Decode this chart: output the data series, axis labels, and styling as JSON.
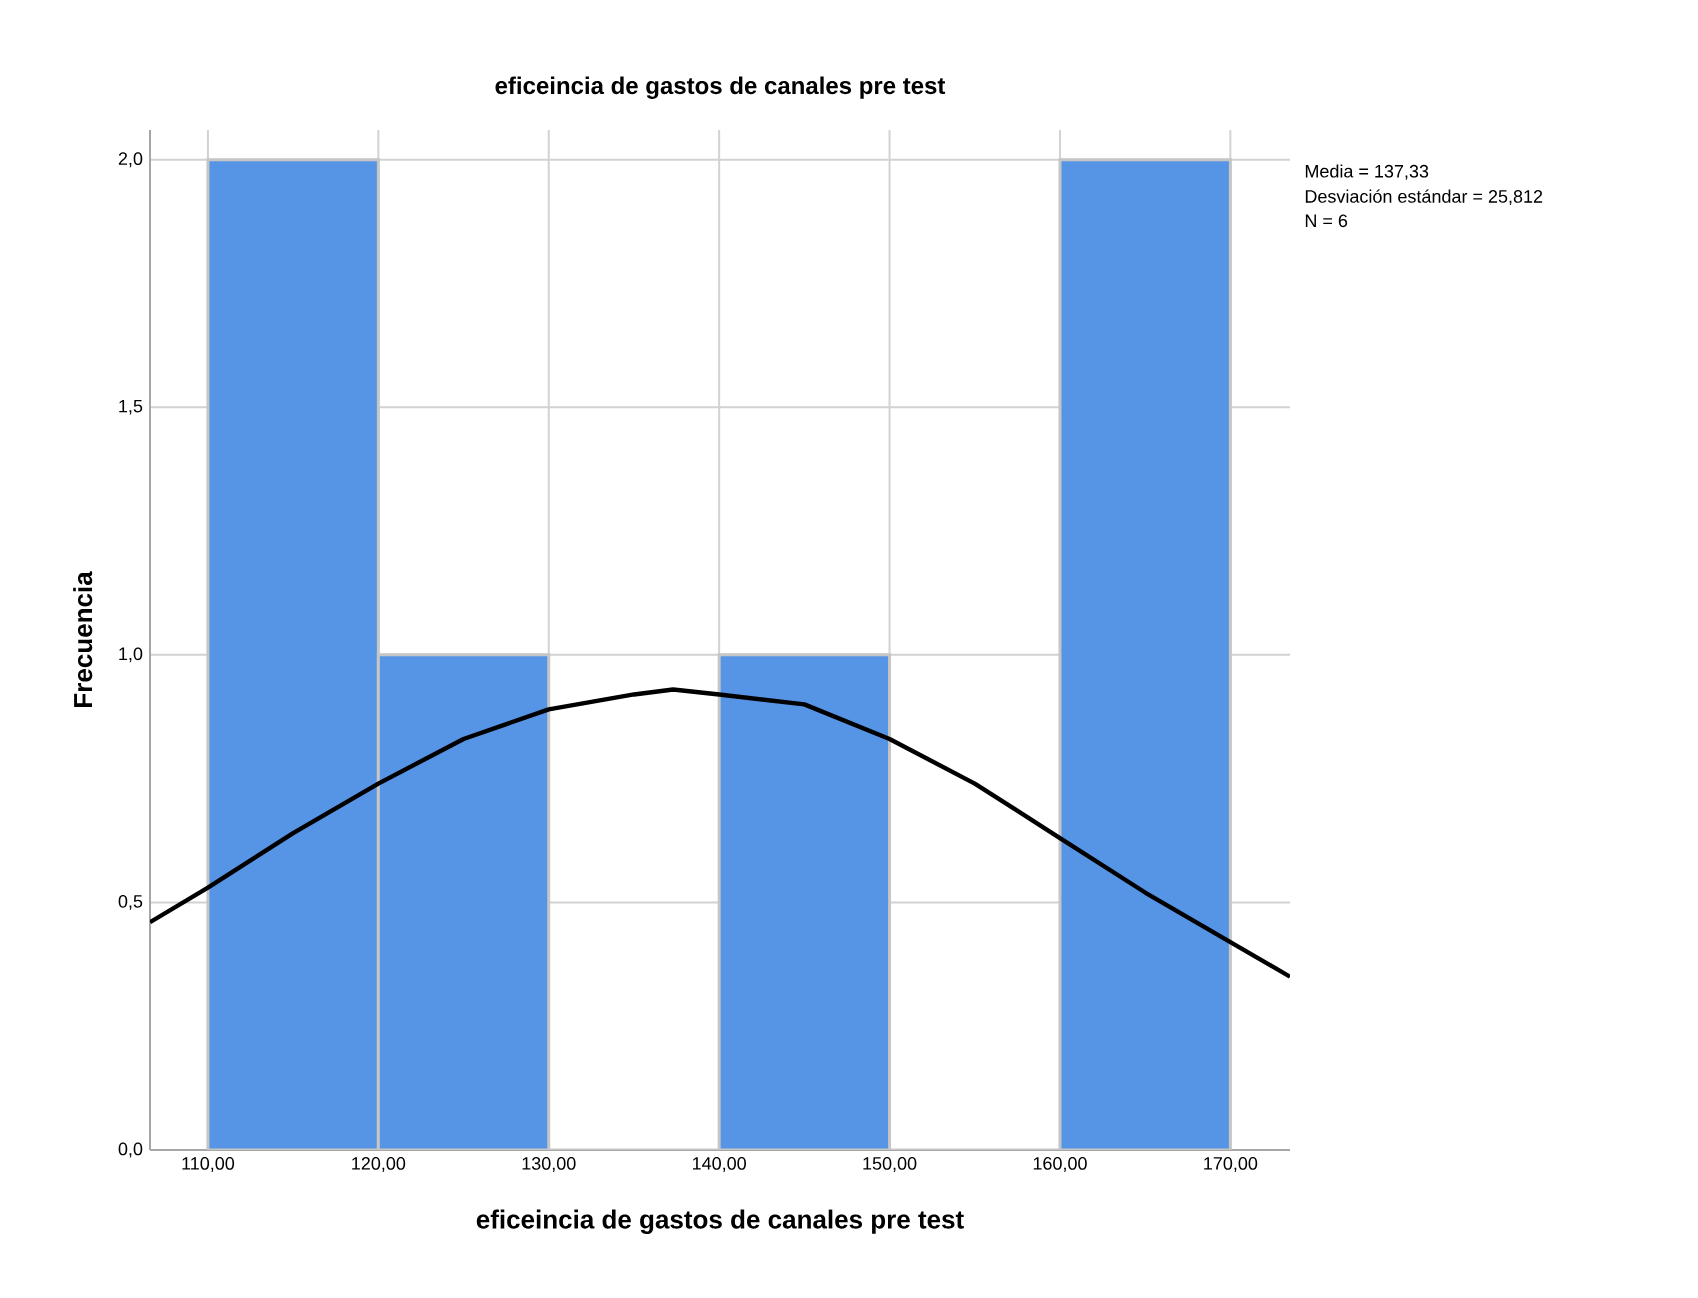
{
  "chart_data": {
    "type": "histogram",
    "title": "eficeincia de  gastos de canales pre test",
    "xlabel": "eficeincia de  gastos de canales pre test",
    "ylabel": "Frecuencia",
    "bins": [
      110,
      120,
      130,
      140,
      150,
      160,
      170
    ],
    "values": [
      2,
      1,
      0,
      1,
      0,
      2
    ],
    "color": "#5694e5",
    "series": [
      {
        "type": "line",
        "color": "#000000",
        "x": [
          106.6,
          110,
          115,
          120,
          125,
          130,
          135,
          137.3,
          140,
          145,
          150,
          155,
          160,
          165,
          170,
          173.5
        ],
        "values": [
          0.46,
          0.53,
          0.64,
          0.74,
          0.83,
          0.89,
          0.92,
          0.93,
          0.92,
          0.9,
          0.83,
          0.74,
          0.63,
          0.52,
          0.42,
          0.35
        ]
      }
    ],
    "xlim": [
      106.6,
      173.5
    ],
    "ylim": [
      0,
      2.06
    ],
    "xticks": [
      {
        "value": 110,
        "label": "110,00"
      },
      {
        "value": 120,
        "label": "120,00"
      },
      {
        "value": 130,
        "label": "130,00"
      },
      {
        "value": 140,
        "label": "140,00"
      },
      {
        "value": 150,
        "label": "150,00"
      },
      {
        "value": 160,
        "label": "160,00"
      },
      {
        "value": 170,
        "label": "170,00"
      }
    ],
    "yticks": [
      {
        "value": 0,
        "label": "0,0"
      },
      {
        "value": 0.5,
        "label": "0,5"
      },
      {
        "value": 1,
        "label": "1,0"
      },
      {
        "value": 1.5,
        "label": "1,5"
      },
      {
        "value": 2,
        "label": "2,0"
      }
    ],
    "grid": true,
    "annotations": [
      "Media = 137,33",
      "Desviación estándar = 25,812",
      "N = 6"
    ]
  }
}
